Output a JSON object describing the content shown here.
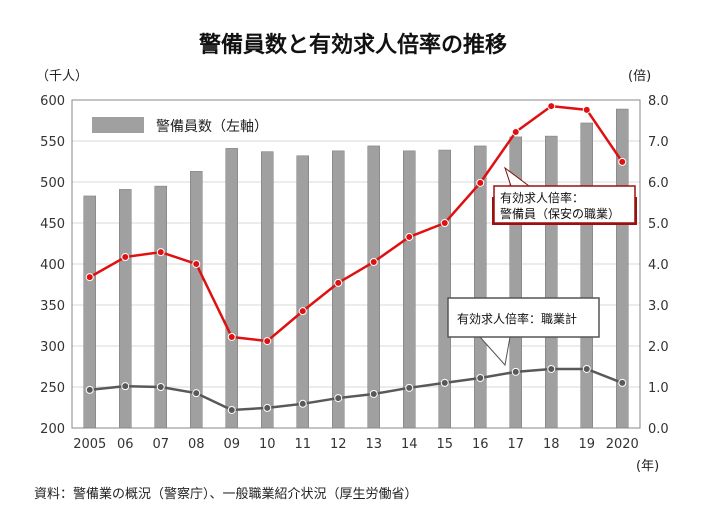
{
  "chart_data": {
    "type": "bar+line",
    "title": "警備員数と有効求人倍率の推移",
    "left_unit": "（千人）",
    "right_unit": "(倍)",
    "x_unit": "(年)",
    "categories": [
      "2005",
      "06",
      "07",
      "08",
      "09",
      "10",
      "11",
      "12",
      "13",
      "14",
      "15",
      "16",
      "17",
      "18",
      "19",
      "2020"
    ],
    "left_ylim": [
      200,
      600
    ],
    "left_ticks": [
      "200",
      "250",
      "300",
      "350",
      "400",
      "450",
      "500",
      "550",
      "600"
    ],
    "right_ylim": [
      0,
      8
    ],
    "right_ticks": [
      "0.0",
      "1.0",
      "2.0",
      "3.0",
      "4.0",
      "5.0",
      "6.0",
      "7.0",
      "8.0"
    ],
    "grid": true,
    "series": [
      {
        "name": "警備員数（左軸）",
        "type": "bar",
        "axis": "left",
        "color": "#a0a0a0",
        "values": [
          483,
          491,
          495,
          513,
          541,
          537,
          532,
          538,
          544,
          538,
          539,
          544,
          555,
          556,
          572,
          589
        ]
      },
      {
        "name": "有効求人倍率：警備員（保安の職業）",
        "type": "line",
        "axis": "right",
        "color": "#e01010",
        "values": [
          3.68,
          4.17,
          4.29,
          4.0,
          2.22,
          2.12,
          2.85,
          3.54,
          4.05,
          4.66,
          5.0,
          5.98,
          7.22,
          7.85,
          7.76,
          6.49
        ]
      },
      {
        "name": "有効求人倍率：職業計",
        "type": "line",
        "axis": "right",
        "color": "#595959",
        "values": [
          0.93,
          1.02,
          1.0,
          0.85,
          0.44,
          0.49,
          0.59,
          0.73,
          0.83,
          0.98,
          1.1,
          1.22,
          1.37,
          1.44,
          1.44,
          1.1
        ]
      }
    ],
    "legend": "top-left",
    "callout_red_line1": "有効求人倍率：",
    "callout_red_line2": "警備員（保安の職業）",
    "callout_gray": "有効求人倍率：職業計",
    "source": "資料：警備業の概況（警察庁）、一般職業紹介状況（厚生労働省）"
  }
}
